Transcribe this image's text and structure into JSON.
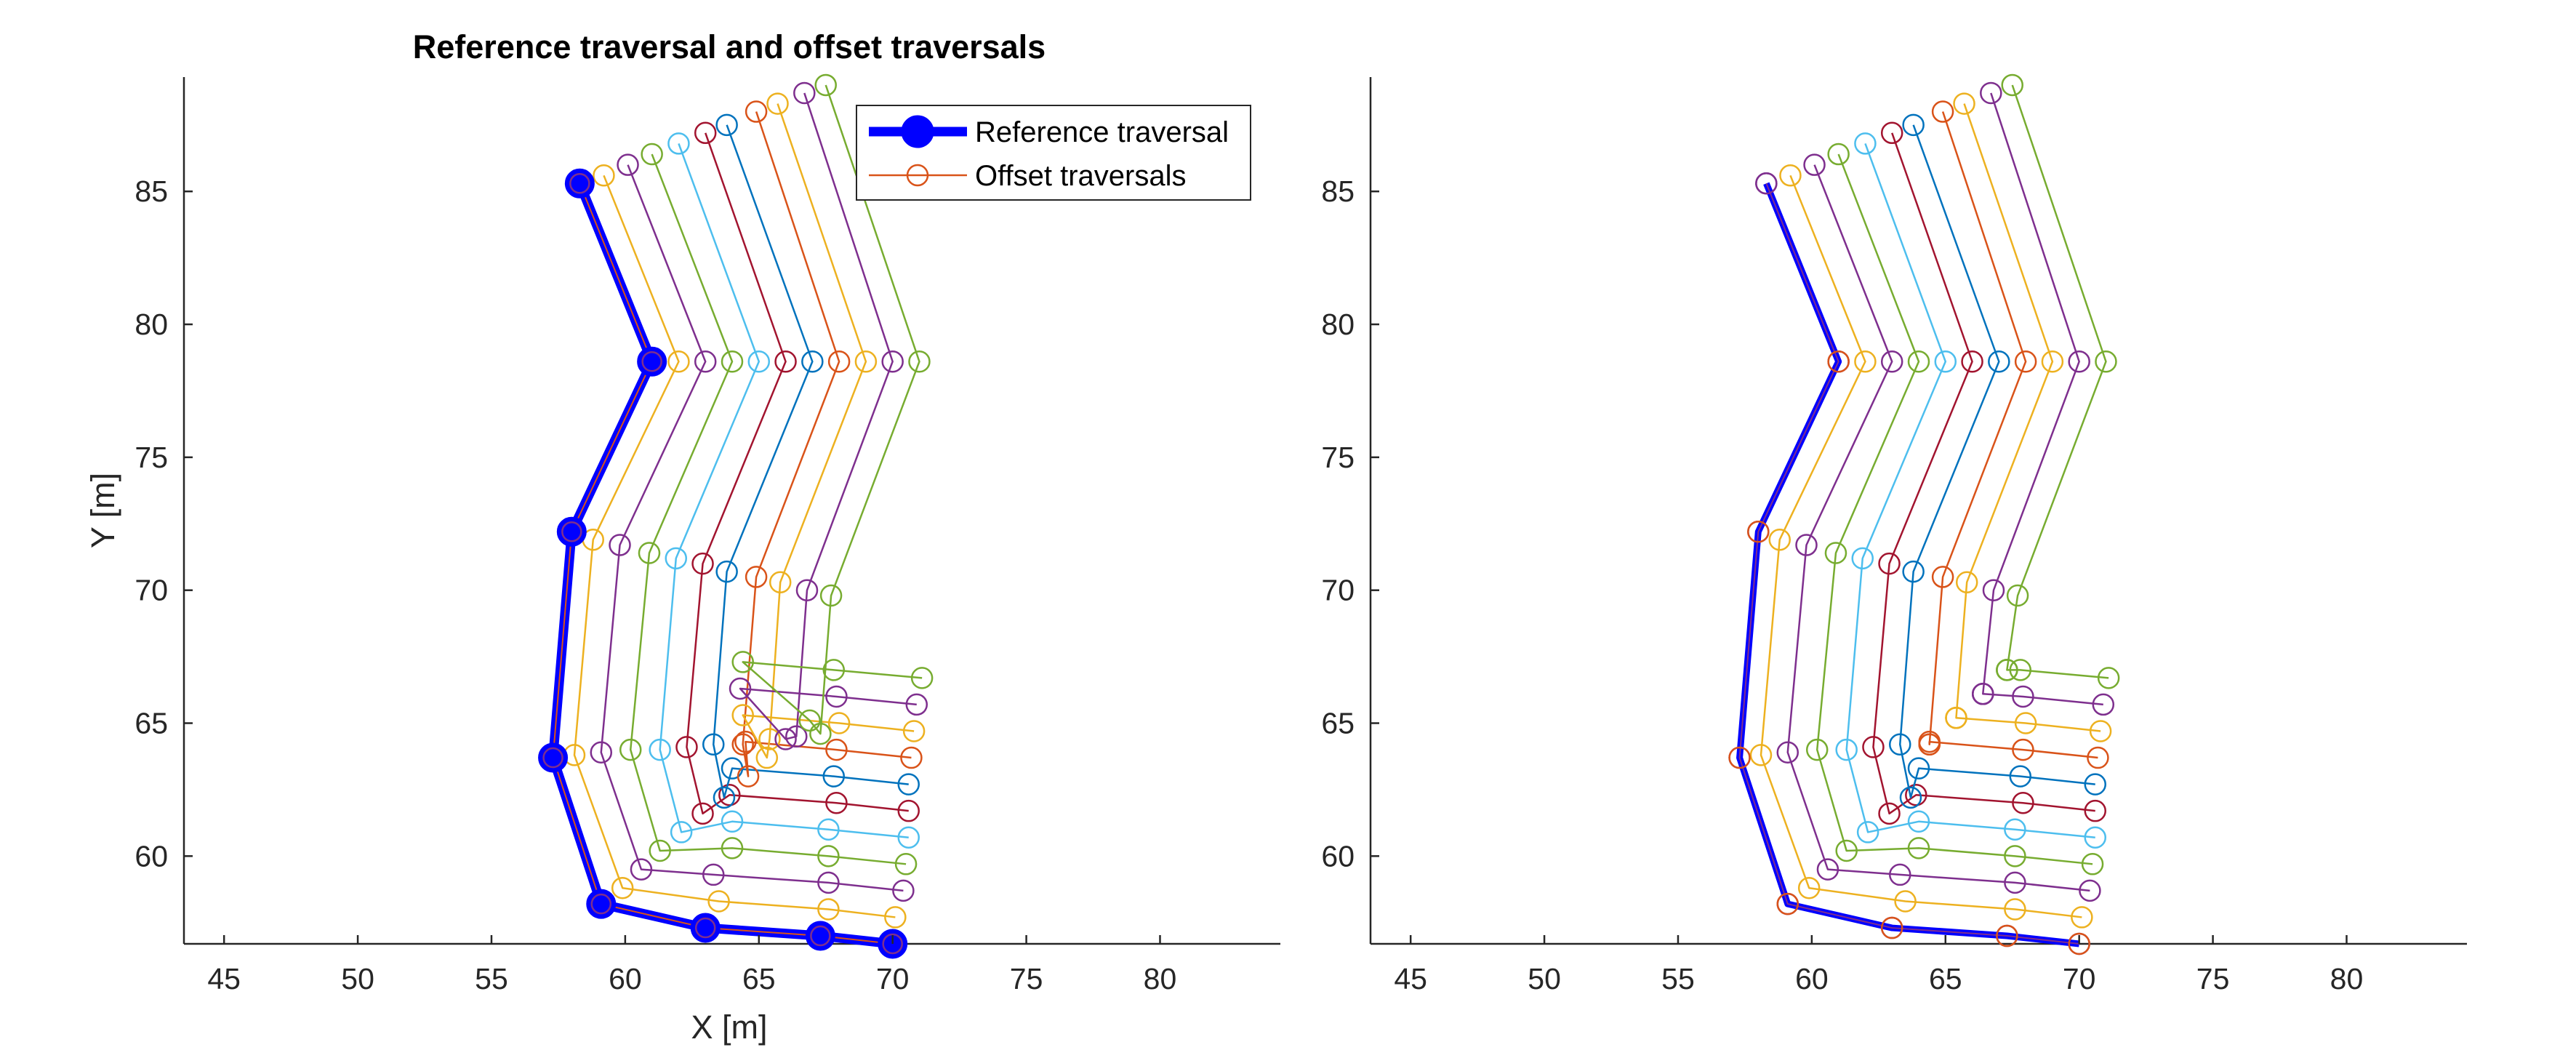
{
  "chart_data": [
    {
      "type": "line",
      "title": "Reference traversal and offset traversals",
      "xlabel": "X [m]",
      "ylabel": "Y [m]",
      "xlim": [
        43.5,
        84.5
      ],
      "ylim": [
        56.7,
        89.3
      ],
      "xticks": [
        45,
        50,
        55,
        60,
        65,
        70,
        75,
        80
      ],
      "yticks": [
        60,
        65,
        70,
        75,
        80,
        85
      ],
      "grid": false,
      "legend": {
        "placement": "top-right",
        "entries": [
          {
            "label": "Reference traversal",
            "color": "#0000ff",
            "style": "thick-line-filled-circle"
          },
          {
            "label": "Offset traversals",
            "color": "#d95319",
            "style": "thin-line-open-circle"
          }
        ]
      },
      "reference": {
        "name": "Reference traversal",
        "color": "#0000ff",
        "x": [
          58.3,
          61.0,
          58.0,
          57.3,
          59.1,
          63.0,
          67.3,
          70.0
        ],
        "y": [
          85.3,
          78.6,
          72.2,
          63.7,
          58.2,
          57.3,
          57.0,
          56.7
        ]
      },
      "series": [
        {
          "color": "#edb120",
          "x": [
            59.2,
            62.0,
            58.8,
            58.1,
            59.9,
            63.5,
            67.6,
            70.1
          ],
          "y": [
            85.6,
            78.6,
            71.9,
            63.8,
            58.8,
            58.3,
            58.0,
            57.7
          ]
        },
        {
          "color": "#7e2f8e",
          "x": [
            60.1,
            63.0,
            59.8,
            59.1,
            60.6,
            63.3,
            67.6,
            70.4
          ],
          "y": [
            86.0,
            78.6,
            71.7,
            63.9,
            59.5,
            59.3,
            59.0,
            58.7
          ]
        },
        {
          "color": "#77ac30",
          "x": [
            61.0,
            64.0,
            60.9,
            60.2,
            61.3,
            64.0,
            67.6,
            70.5
          ],
          "y": [
            86.4,
            78.6,
            71.4,
            64.0,
            60.2,
            60.3,
            60.0,
            59.7
          ]
        },
        {
          "color": "#4dbeee",
          "x": [
            62.0,
            65.0,
            61.9,
            61.3,
            62.1,
            64.0,
            67.6,
            70.6
          ],
          "y": [
            86.8,
            78.6,
            71.2,
            64.0,
            60.9,
            61.3,
            61.0,
            60.7
          ]
        },
        {
          "color": "#a2142f",
          "x": [
            63.0,
            66.0,
            62.9,
            62.3,
            62.9,
            63.9,
            67.9,
            70.6
          ],
          "y": [
            87.2,
            78.6,
            71.0,
            64.1,
            61.6,
            62.3,
            62.0,
            61.7
          ]
        },
        {
          "color": "#0072bd",
          "x": [
            63.8,
            67.0,
            63.8,
            63.3,
            63.7,
            64.0,
            67.8,
            70.6
          ],
          "y": [
            87.5,
            78.6,
            70.7,
            64.2,
            62.2,
            63.3,
            63.0,
            62.7
          ]
        },
        {
          "color": "#d95319",
          "x": [
            64.9,
            68.0,
            64.9,
            64.4,
            64.6,
            64.5,
            67.9,
            70.7
          ],
          "y": [
            88.0,
            78.6,
            70.5,
            64.2,
            63.0,
            64.3,
            64.0,
            63.7
          ]
        },
        {
          "color": "#edb120",
          "x": [
            65.7,
            69.0,
            65.8,
            65.4,
            65.3,
            64.4,
            68.0,
            70.8
          ],
          "y": [
            88.3,
            78.6,
            70.3,
            64.4,
            63.7,
            65.3,
            65.0,
            64.7
          ]
        },
        {
          "color": "#7e2f8e",
          "x": [
            66.7,
            70.0,
            66.8,
            66.4,
            66.0,
            64.3,
            67.9,
            70.9
          ],
          "y": [
            88.7,
            78.6,
            70.0,
            64.5,
            64.4,
            66.3,
            66.0,
            65.7
          ]
        },
        {
          "color": "#77ac30",
          "x": [
            67.5,
            71.0,
            67.7,
            67.3,
            66.9,
            64.4,
            67.8,
            71.1
          ],
          "y": [
            89.0,
            78.6,
            69.8,
            64.6,
            65.1,
            67.3,
            67.0,
            66.7
          ]
        }
      ]
    },
    {
      "type": "line",
      "title": "",
      "xlabel": "",
      "ylabel": "",
      "xlim": [
        43.5,
        84.5
      ],
      "ylim": [
        56.7,
        89.3
      ],
      "xticks": [
        45,
        50,
        55,
        60,
        65,
        70,
        75,
        80
      ],
      "yticks": [
        60,
        65,
        70,
        75,
        80,
        85
      ],
      "grid": false,
      "reference": {
        "color": "#0000ff",
        "x": [
          58.3,
          61.0,
          58.0,
          57.3,
          59.1,
          63.0,
          67.3,
          70.0
        ],
        "y": [
          85.3,
          78.6,
          72.2,
          63.7,
          58.2,
          57.3,
          57.0,
          56.7
        ]
      },
      "series": [
        {
          "color": "#7e2f8e",
          "x": [
            58.3,
            61.0,
            58.0,
            57.3,
            59.1,
            63.0,
            67.3,
            70.0
          ],
          "y": [
            85.3,
            78.6,
            72.2,
            63.7,
            58.2,
            57.3,
            57.0,
            56.7
          ]
        },
        {
          "color": "#edb120",
          "x": [
            59.2,
            62.0,
            58.8,
            58.1,
            59.9,
            63.5,
            67.6,
            70.1
          ],
          "y": [
            85.6,
            78.6,
            71.9,
            63.8,
            58.8,
            58.3,
            58.0,
            57.7
          ]
        },
        {
          "color": "#7e2f8e",
          "x": [
            60.1,
            63.0,
            59.8,
            59.1,
            60.6,
            63.3,
            67.6,
            70.4
          ],
          "y": [
            86.0,
            78.6,
            71.7,
            63.9,
            59.5,
            59.3,
            59.0,
            58.7
          ]
        },
        {
          "color": "#77ac30",
          "x": [
            61.0,
            64.0,
            60.9,
            60.2,
            61.3,
            64.0,
            67.6,
            70.5
          ],
          "y": [
            86.4,
            78.6,
            71.4,
            64.0,
            60.2,
            60.3,
            60.0,
            59.7
          ]
        },
        {
          "color": "#4dbeee",
          "x": [
            62.0,
            65.0,
            61.9,
            61.3,
            62.1,
            64.0,
            67.6,
            70.6
          ],
          "y": [
            86.8,
            78.6,
            71.2,
            64.0,
            60.9,
            61.3,
            61.0,
            60.7
          ]
        },
        {
          "color": "#a2142f",
          "x": [
            63.0,
            66.0,
            62.9,
            62.3,
            62.9,
            63.9,
            67.9,
            70.6
          ],
          "y": [
            87.2,
            78.6,
            71.0,
            64.1,
            61.6,
            62.3,
            62.0,
            61.7
          ]
        },
        {
          "color": "#0072bd",
          "x": [
            63.8,
            67.0,
            63.8,
            63.3,
            63.7,
            64.0,
            67.8,
            70.6
          ],
          "y": [
            87.5,
            78.6,
            70.7,
            64.2,
            62.2,
            63.3,
            63.0,
            62.7
          ]
        },
        {
          "color": "#d95319",
          "x": [
            64.9,
            68.0,
            64.9,
            64.4,
            64.4,
            64.4,
            67.9,
            70.7
          ],
          "y": [
            88.0,
            78.6,
            70.5,
            64.2,
            64.2,
            64.3,
            64.0,
            63.7
          ]
        },
        {
          "color": "#edb120",
          "x": [
            65.7,
            69.0,
            65.8,
            65.4,
            65.4,
            65.4,
            68.0,
            70.8
          ],
          "y": [
            88.3,
            78.6,
            70.3,
            65.2,
            65.2,
            65.2,
            65.0,
            64.7
          ]
        },
        {
          "color": "#7e2f8e",
          "x": [
            66.7,
            70.0,
            66.8,
            66.4,
            66.4,
            66.4,
            67.9,
            70.9
          ],
          "y": [
            88.7,
            78.6,
            70.0,
            66.1,
            66.1,
            66.1,
            66.0,
            65.7
          ]
        },
        {
          "color": "#77ac30",
          "x": [
            67.5,
            71.0,
            67.7,
            67.3,
            67.3,
            67.3,
            67.8,
            71.1
          ],
          "y": [
            89.0,
            78.6,
            69.8,
            67.0,
            67.0,
            67.0,
            67.0,
            66.7
          ]
        }
      ]
    }
  ]
}
